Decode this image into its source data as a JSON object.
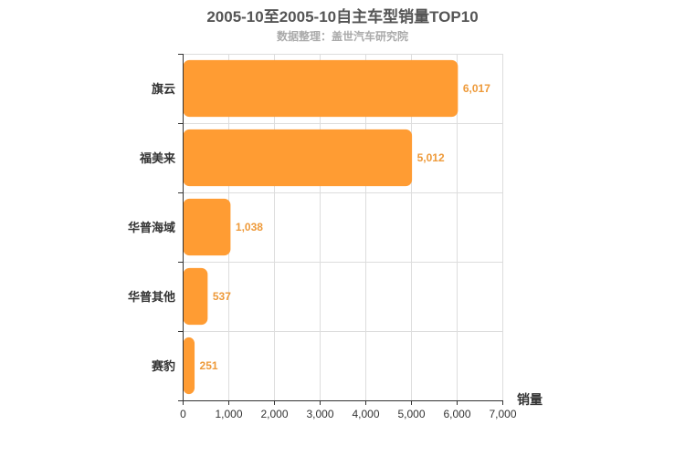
{
  "chart_data": {
    "type": "bar",
    "orientation": "horizontal",
    "title": "2005-10至2005-10自主车型销量TOP10",
    "subtitle": "数据整理：盖世汽车研究院",
    "xlabel": "销量",
    "ylabel": "",
    "categories": [
      "旗云",
      "福美来",
      "华普海域",
      "华普其他",
      "赛豹"
    ],
    "values": [
      6017,
      5012,
      1038,
      537,
      251
    ],
    "value_labels": [
      "6,017",
      "5,012",
      "1,038",
      "537",
      "251"
    ],
    "xlim": [
      0,
      7000
    ],
    "xticks": [
      0,
      1000,
      2000,
      3000,
      4000,
      5000,
      6000,
      7000
    ],
    "xtick_labels": [
      "0",
      "1,000",
      "2,000",
      "3,000",
      "4,000",
      "5,000",
      "6,000",
      "7,000"
    ],
    "grid": true,
    "bar_color": "#ff9c33",
    "label_color": "#ee9a3a"
  }
}
